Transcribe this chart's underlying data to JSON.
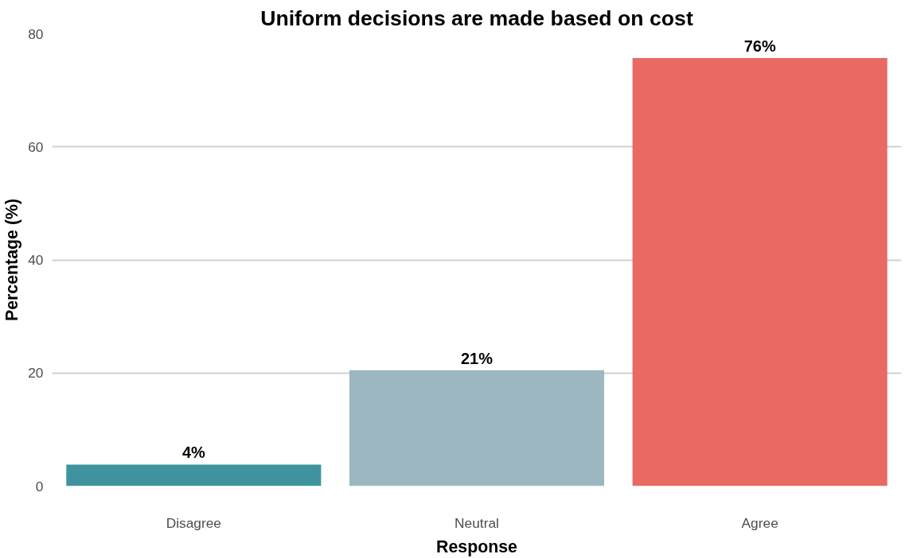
{
  "chart_data": {
    "type": "bar",
    "title": "Uniform decisions are made based on cost",
    "xlabel": "Response",
    "ylabel": "Percentage (%)",
    "categories": [
      "Disagree",
      "Neutral",
      "Agree"
    ],
    "values": [
      3.8,
      20.5,
      75.7
    ],
    "colors": [
      "#3f939e",
      "#9db7c1",
      "#e86a62"
    ],
    "value_labels": [
      "4%",
      "21%",
      "76%"
    ],
    "ylim": [
      0,
      80
    ],
    "yticks": [
      0,
      20,
      40,
      60,
      80
    ],
    "grid": "y"
  }
}
